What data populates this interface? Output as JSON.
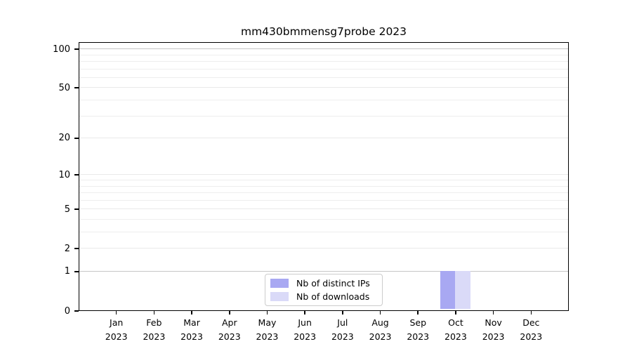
{
  "figure": {
    "title": "mm430bmmensg7probe 2023",
    "background_color": "#ffffff",
    "text_color": "#000000"
  },
  "chart_data": {
    "type": "bar",
    "title": "mm430bmmensg7probe 2023",
    "categories": [
      "Jan",
      "Feb",
      "Mar",
      "Apr",
      "May",
      "Jun",
      "Jul",
      "Aug",
      "Sep",
      "Oct",
      "Nov",
      "Dec"
    ],
    "year_label": "2023",
    "series": [
      {
        "name": "Nb of distinct IPs",
        "color": "#a8a8f2",
        "values": [
          0,
          0,
          0,
          0,
          0,
          0,
          0,
          0,
          0,
          1,
          0,
          0
        ]
      },
      {
        "name": "Nb of downloads",
        "color": "#dadaf8",
        "values": [
          0,
          0,
          0,
          0,
          0,
          0,
          0,
          0,
          0,
          1,
          0,
          0
        ]
      }
    ],
    "xlabel": "",
    "ylabel": "",
    "y_scale": "log1p",
    "ylim": [
      0,
      113
    ],
    "y_ticks": [
      0,
      1,
      2,
      5,
      10,
      20,
      50,
      100
    ],
    "y_minor_gridlines": [
      3,
      4,
      6,
      7,
      8,
      9,
      30,
      40,
      60,
      70,
      80,
      90
    ],
    "emphasized_gridlines": [
      1,
      100
    ],
    "grid": "horizontal",
    "legend_position": "inside-bottom-center",
    "grid_color_minor": "#eeeeee",
    "grid_color_labeled": "#e9e9e9",
    "grid_color_emphasized": "#c7c7c7"
  },
  "legend": {
    "items": [
      {
        "label": "Nb of distinct IPs",
        "color": "#a8a8f2"
      },
      {
        "label": "Nb of downloads",
        "color": "#dadaf8"
      }
    ]
  }
}
